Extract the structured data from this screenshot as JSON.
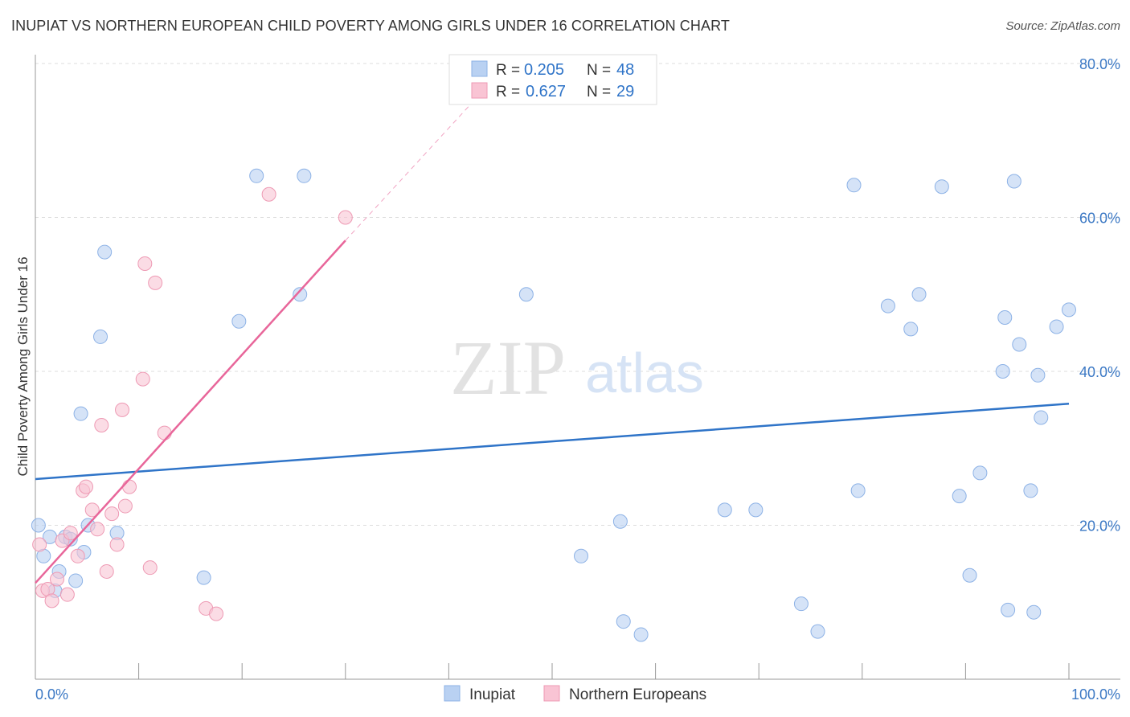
{
  "title": "INUPIAT VS NORTHERN EUROPEAN CHILD POVERTY AMONG GIRLS UNDER 16 CORRELATION CHART",
  "source": "Source: ZipAtlas.com",
  "watermark": {
    "zip": "ZIP",
    "atlas": "atlas"
  },
  "colors": {
    "inupiat_fill": "#b9d1f2",
    "inupiat_stroke": "#8db2e6",
    "inupiat_line": "#2f74c8",
    "northern_fill": "#f9c4d4",
    "northern_stroke": "#ee9ab4",
    "northern_line": "#e8669a",
    "grid": "#dddddd",
    "tick_label": "#3b78c4",
    "axis": "#999999"
  },
  "legend": {
    "rows": [
      {
        "r_label": "R =",
        "r_value": "0.205",
        "n_label": "N =",
        "n_value": "48"
      },
      {
        "r_label": "R =",
        "r_value": "0.627",
        "n_label": "N =",
        "n_value": "29"
      }
    ]
  },
  "chart_data": {
    "type": "scatter",
    "ylabel": "Child Poverty Among Girls Under 16",
    "x_tick_labels": {
      "min": "0.0%",
      "max": "100.0%"
    },
    "y_tick_labels": [
      "20.0%",
      "40.0%",
      "60.0%",
      "80.0%"
    ],
    "xlim": [
      0,
      100
    ],
    "ylim": [
      0,
      83
    ],
    "y_ticks": [
      20,
      40,
      60,
      80
    ],
    "grid": true,
    "legend_position": "bottom-center",
    "series": [
      {
        "name": "Inupiat",
        "r": 0.205,
        "n": 48,
        "trend": {
          "x": [
            0,
            100
          ],
          "y": [
            26.0,
            35.8
          ]
        },
        "points": [
          [
            0.3,
            20.0
          ],
          [
            0.8,
            16.0
          ],
          [
            1.4,
            18.5
          ],
          [
            2.3,
            14.0
          ],
          [
            1.9,
            11.5
          ],
          [
            2.9,
            18.5
          ],
          [
            3.4,
            18.2
          ],
          [
            3.9,
            12.8
          ],
          [
            4.4,
            34.5
          ],
          [
            4.7,
            16.5
          ],
          [
            5.1,
            20.0
          ],
          [
            6.7,
            55.5
          ],
          [
            6.3,
            44.5
          ],
          [
            7.9,
            19.0
          ],
          [
            16.3,
            13.2
          ],
          [
            19.7,
            46.5
          ],
          [
            21.4,
            65.4
          ],
          [
            25.6,
            50.0
          ],
          [
            26.0,
            65.4
          ],
          [
            47.5,
            50.0
          ],
          [
            52.8,
            16.0
          ],
          [
            56.6,
            20.5
          ],
          [
            56.9,
            7.5
          ],
          [
            58.6,
            5.8
          ],
          [
            66.7,
            22.0
          ],
          [
            69.7,
            22.0
          ],
          [
            74.1,
            9.8
          ],
          [
            75.7,
            6.2
          ],
          [
            79.2,
            64.2
          ],
          [
            79.6,
            24.5
          ],
          [
            82.5,
            48.5
          ],
          [
            84.7,
            45.5
          ],
          [
            85.5,
            50.0
          ],
          [
            87.7,
            64.0
          ],
          [
            89.4,
            23.8
          ],
          [
            90.4,
            13.5
          ],
          [
            91.4,
            26.8
          ],
          [
            93.6,
            40.0
          ],
          [
            93.8,
            47.0
          ],
          [
            94.1,
            9.0
          ],
          [
            94.7,
            64.7
          ],
          [
            95.2,
            43.5
          ],
          [
            96.3,
            24.5
          ],
          [
            96.6,
            8.7
          ],
          [
            97.0,
            39.5
          ],
          [
            97.3,
            34.0
          ],
          [
            98.8,
            45.8
          ],
          [
            100.0,
            48.0
          ]
        ]
      },
      {
        "name": "Northern Europeans",
        "r": 0.627,
        "n": 29,
        "trend": {
          "x": [
            0,
            30
          ],
          "y": [
            12.5,
            57.0
          ]
        },
        "trend_ext": {
          "x": [
            30,
            43
          ],
          "y": [
            57.0,
            76.0
          ]
        },
        "points": [
          [
            0.4,
            17.5
          ],
          [
            0.7,
            11.5
          ],
          [
            1.2,
            11.7
          ],
          [
            1.6,
            10.2
          ],
          [
            2.1,
            13.0
          ],
          [
            2.6,
            18.0
          ],
          [
            3.1,
            11.0
          ],
          [
            3.4,
            19.0
          ],
          [
            4.1,
            16.0
          ],
          [
            4.6,
            24.5
          ],
          [
            4.9,
            25.0
          ],
          [
            5.5,
            22.0
          ],
          [
            6.0,
            19.5
          ],
          [
            6.4,
            33.0
          ],
          [
            6.9,
            14.0
          ],
          [
            7.4,
            21.5
          ],
          [
            7.9,
            17.5
          ],
          [
            8.4,
            35.0
          ],
          [
            8.7,
            22.5
          ],
          [
            9.1,
            25.0
          ],
          [
            10.4,
            39.0
          ],
          [
            10.6,
            54.0
          ],
          [
            11.1,
            14.5
          ],
          [
            11.6,
            51.5
          ],
          [
            12.5,
            32.0
          ],
          [
            16.5,
            9.2
          ],
          [
            17.5,
            8.5
          ],
          [
            22.6,
            63.0
          ],
          [
            30.0,
            60.0
          ]
        ]
      }
    ]
  }
}
